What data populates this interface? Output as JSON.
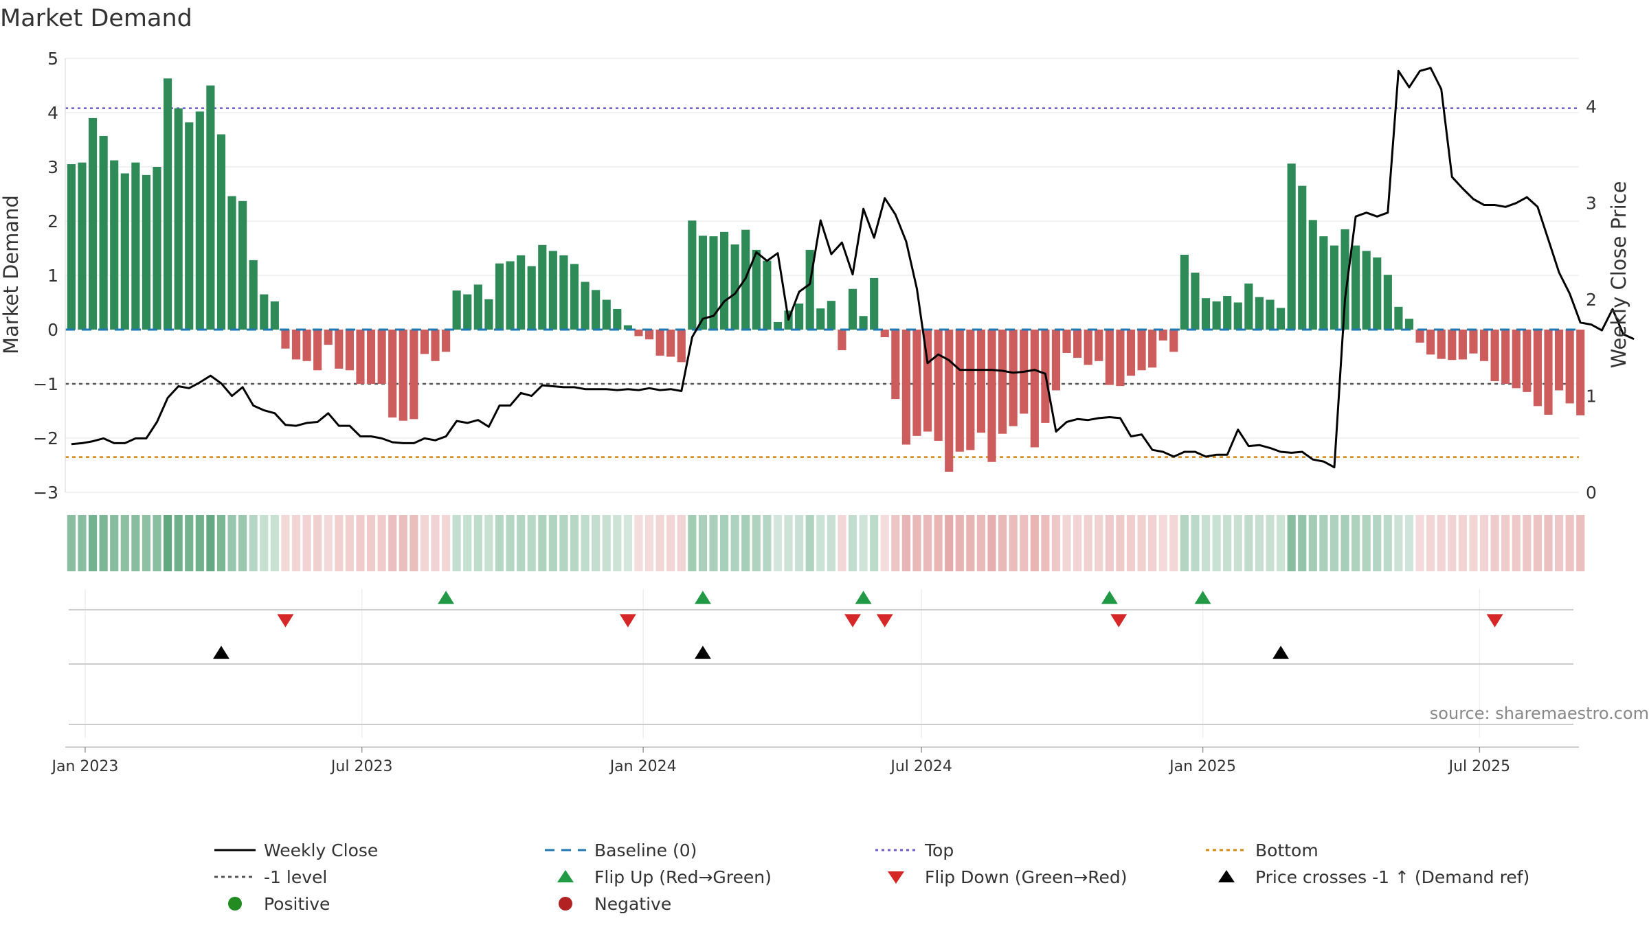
{
  "chart_data": {
    "type": "bar",
    "title": "Market Demand",
    "ylabel_left": "Market Demand",
    "ylabel_right": "Weekly Close Price",
    "source": "source: sharemaestro.com",
    "ylim_left": [
      -3,
      5
    ],
    "yticks_left": [
      {
        "v": 5,
        "label": "5"
      },
      {
        "v": 4,
        "label": "4"
      },
      {
        "v": 3,
        "label": "3"
      },
      {
        "v": 2,
        "label": "2"
      },
      {
        "v": 1,
        "label": "1"
      },
      {
        "v": 0,
        "label": "0"
      },
      {
        "v": -1,
        "label": "−1"
      },
      {
        "v": -2,
        "label": "−2"
      },
      {
        "v": -3,
        "label": "−3"
      }
    ],
    "ylim_right": [
      0,
      4.5
    ],
    "yticks_right": [
      {
        "v": 0,
        "label": "0"
      },
      {
        "v": 1,
        "label": "1"
      },
      {
        "v": 2,
        "label": "2"
      },
      {
        "v": 3,
        "label": "3"
      },
      {
        "v": 4,
        "label": "4"
      }
    ],
    "x_start": "2022-12-19",
    "x_end": "2025-09-04",
    "first_bar": "2022-12-23",
    "bar_interval_days": 7,
    "xticks": [
      {
        "date": "2023-01-01",
        "label": "Jan 2023"
      },
      {
        "date": "2023-07-01",
        "label": "Jul 2023"
      },
      {
        "date": "2024-01-01",
        "label": "Jan 2024"
      },
      {
        "date": "2024-07-01",
        "label": "Jul 2024"
      },
      {
        "date": "2025-01-01",
        "label": "Jan 2025"
      },
      {
        "date": "2025-07-01",
        "label": "Jul 2025"
      }
    ],
    "top_level": 4.08,
    "bottom_level": -2.35,
    "minus_one_level": -1,
    "demand": [
      3.05,
      3.08,
      3.9,
      3.57,
      3.12,
      2.88,
      3.08,
      2.85,
      3.0,
      4.63,
      4.08,
      3.82,
      4.02,
      4.5,
      3.6,
      2.46,
      2.37,
      1.28,
      0.65,
      0.52,
      -0.35,
      -0.55,
      -0.58,
      -0.75,
      -0.28,
      -0.72,
      -0.75,
      -1.0,
      -1.0,
      -1.0,
      -1.62,
      -1.68,
      -1.65,
      -0.45,
      -0.58,
      -0.41,
      0.72,
      0.65,
      0.83,
      0.56,
      1.22,
      1.26,
      1.37,
      1.17,
      1.56,
      1.45,
      1.37,
      1.21,
      0.88,
      0.73,
      0.55,
      0.38,
      0.08,
      -0.12,
      -0.18,
      -0.48,
      -0.5,
      -0.6,
      2.01,
      1.73,
      1.72,
      1.8,
      1.57,
      1.84,
      1.47,
      1.27,
      0.14,
      0.35,
      0.48,
      1.47,
      0.39,
      0.53,
      -0.38,
      0.75,
      0.25,
      0.95,
      -0.14,
      -1.28,
      -2.12,
      -1.96,
      -1.88,
      -2.05,
      -2.62,
      -2.25,
      -2.22,
      -1.9,
      -2.44,
      -1.92,
      -1.78,
      -1.55,
      -2.17,
      -1.72,
      -1.12,
      -0.43,
      -0.52,
      -0.65,
      -0.58,
      -1.02,
      -1.04,
      -0.85,
      -0.75,
      -0.7,
      -0.2,
      -0.41,
      1.38,
      1.05,
      0.58,
      0.52,
      0.62,
      0.5,
      0.85,
      0.6,
      0.55,
      0.4,
      3.06,
      2.65,
      2.02,
      1.72,
      1.55,
      1.85,
      1.55,
      1.45,
      1.33,
      1.01,
      0.42,
      0.2,
      -0.24,
      -0.46,
      -0.54,
      -0.56,
      -0.55,
      -0.44,
      -0.58,
      -0.95,
      -1.0,
      -1.08,
      -1.15,
      -1.41,
      -1.57,
      -1.12,
      -1.36,
      -1.58
    ],
    "weekly_close": [
      0.5,
      0.51,
      0.53,
      0.56,
      0.51,
      0.51,
      0.56,
      0.56,
      0.73,
      0.98,
      1.1,
      1.08,
      1.14,
      1.21,
      1.13,
      1.0,
      1.09,
      0.9,
      0.85,
      0.82,
      0.7,
      0.69,
      0.72,
      0.73,
      0.82,
      0.69,
      0.69,
      0.58,
      0.58,
      0.56,
      0.52,
      0.51,
      0.51,
      0.56,
      0.54,
      0.58,
      0.74,
      0.72,
      0.75,
      0.68,
      0.9,
      0.9,
      1.03,
      1.0,
      1.11,
      1.1,
      1.09,
      1.09,
      1.07,
      1.07,
      1.07,
      1.06,
      1.07,
      1.06,
      1.08,
      1.06,
      1.07,
      1.05,
      1.61,
      1.8,
      1.83,
      1.98,
      2.06,
      2.22,
      2.49,
      2.4,
      2.48,
      1.79,
      2.08,
      2.16,
      2.82,
      2.47,
      2.59,
      2.26,
      2.94,
      2.64,
      3.05,
      2.88,
      2.6,
      2.11,
      1.34,
      1.43,
      1.37,
      1.27,
      1.27,
      1.27,
      1.27,
      1.26,
      1.24,
      1.25,
      1.27,
      1.23,
      0.63,
      0.73,
      0.76,
      0.75,
      0.77,
      0.78,
      0.77,
      0.58,
      0.6,
      0.44,
      0.42,
      0.37,
      0.42,
      0.42,
      0.37,
      0.39,
      0.39,
      0.65,
      0.48,
      0.49,
      0.46,
      0.42,
      0.41,
      0.42,
      0.34,
      0.32,
      0.26,
      2.0,
      2.86,
      2.9,
      2.86,
      2.9,
      4.37,
      4.2,
      4.37,
      4.4,
      4.18,
      3.27,
      3.15,
      3.04,
      2.98,
      2.98,
      2.96,
      3.0,
      3.06,
      2.96,
      2.62,
      2.28,
      2.06,
      1.76,
      1.74,
      1.68,
      1.9,
      1.64,
      1.59
    ],
    "flip_up": [
      "2023-08-25",
      "2024-02-09",
      "2024-05-24",
      "2024-11-01",
      "2025-01-01"
    ],
    "flip_down": [
      "2023-05-12",
      "2023-12-22",
      "2024-05-17",
      "2024-06-07",
      "2024-11-07",
      "2025-07-11"
    ],
    "price_cross_up": [
      "2023-03-31",
      "2024-02-09",
      "2025-02-21"
    ],
    "legend": [
      {
        "key": "close",
        "label": "Weekly Close"
      },
      {
        "key": "baseline",
        "label": "Baseline (0)"
      },
      {
        "key": "top",
        "label": "Top"
      },
      {
        "key": "bottom",
        "label": "Bottom"
      },
      {
        "key": "minus1",
        "label": "-1 level"
      },
      {
        "key": "flipup",
        "label": "Flip Up (Red→Green)"
      },
      {
        "key": "flipdown",
        "label": "Flip Down (Green→Red)"
      },
      {
        "key": "cross",
        "label": "Price crosses -1 ↑ (Demand ref)"
      },
      {
        "key": "pos",
        "label": "Positive"
      },
      {
        "key": "neg",
        "label": "Negative"
      }
    ],
    "colors": {
      "positive": "#2e8b57",
      "negative": "#cd5c5c",
      "close": "#000000",
      "baseline": "#1f77b4",
      "top": "#6a5acd",
      "bottom": "#d4880f",
      "minus1": "#555555",
      "flip_up": "#229944",
      "flip_down": "#d62728",
      "cross": "#000000",
      "legend_pos": "#228b22",
      "legend_neg": "#b22222"
    }
  }
}
